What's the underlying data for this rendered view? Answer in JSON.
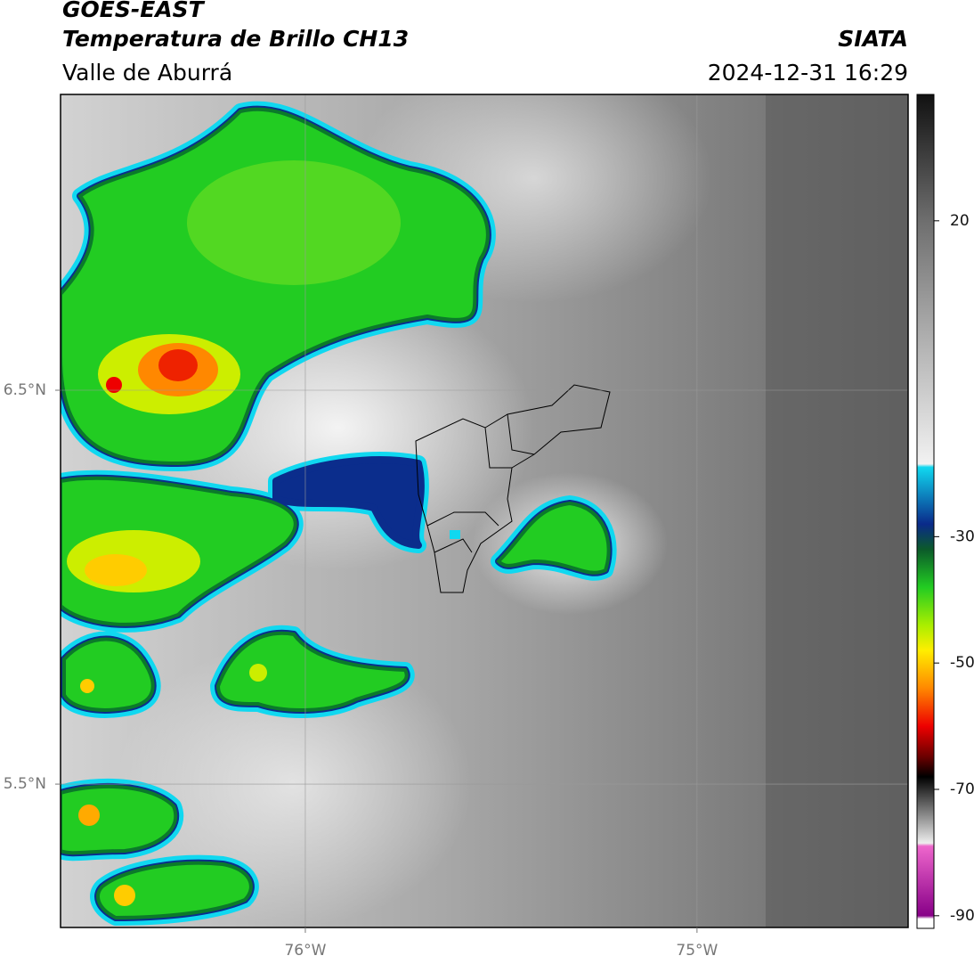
{
  "header": {
    "title": "GOES-EAST",
    "subtitle": "Temperatura de Brillo CH13",
    "source": "SIATA",
    "region": "Valle de Aburrá",
    "datetime": "2024-12-31 16:29"
  },
  "map": {
    "xlim": [
      -76.625,
      -74.461
    ],
    "ylim": [
      5.136,
      7.251
    ],
    "xticks": [
      {
        "value": -76,
        "label": "76°W"
      },
      {
        "value": -75,
        "label": "75°W"
      }
    ],
    "yticks": [
      {
        "value": 6.5,
        "label": "6.5°N"
      },
      {
        "value": 5.5,
        "label": "5.5°N"
      }
    ],
    "grid": true
  },
  "colorbar": {
    "lim": [
      -92,
      40
    ],
    "ticks": [
      20,
      -30,
      -50,
      -70,
      -90
    ],
    "stops": [
      {
        "value": 40,
        "color": "#111111"
      },
      {
        "value": 20,
        "color": "#6e6e6e"
      },
      {
        "value": 0,
        "color": "#b4b4b4"
      },
      {
        "value": -18.5,
        "color": "#f2f2f2"
      },
      {
        "value": -19,
        "color": "#10d8f0"
      },
      {
        "value": -28,
        "color": "#0a2a8a"
      },
      {
        "value": -32,
        "color": "#0b5a2a"
      },
      {
        "value": -38,
        "color": "#22cc22"
      },
      {
        "value": -44,
        "color": "#aaee00"
      },
      {
        "value": -48,
        "color": "#ffee00"
      },
      {
        "value": -54,
        "color": "#ff8800"
      },
      {
        "value": -60,
        "color": "#ee0000"
      },
      {
        "value": -65,
        "color": "#660000"
      },
      {
        "value": -68,
        "color": "#000000"
      },
      {
        "value": -74,
        "color": "#888888"
      },
      {
        "value": -78.5,
        "color": "#eeeeee"
      },
      {
        "value": -79,
        "color": "#ee66cc"
      },
      {
        "value": -90,
        "color": "#880088"
      },
      {
        "value": -90.5,
        "color": "#ffffff"
      }
    ]
  }
}
